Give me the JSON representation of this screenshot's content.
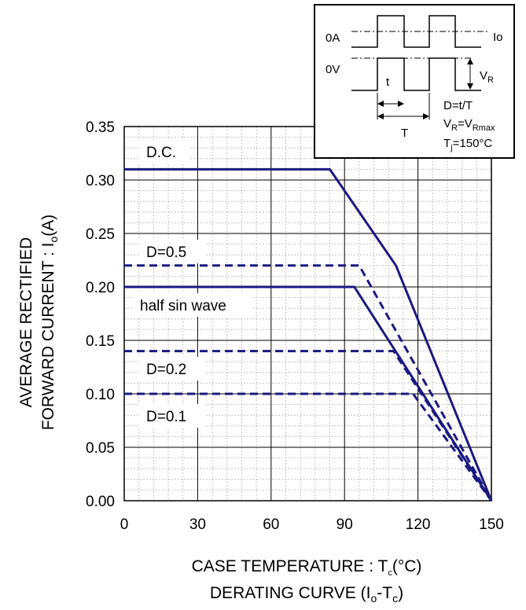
{
  "chart_data": {
    "type": "line",
    "xlabel": "CASE TEMPERATURE : T",
    "xlabel_sub": "c",
    "xlabel_unit": "(°C)",
    "caption": "DERATING CURVE (I",
    "caption_sub1": "o",
    "caption_mid": "-T",
    "caption_sub2": "c",
    "caption_end": ")",
    "ylabel_line1": "AVERAGE RECTIFIED",
    "ylabel_line2": "FORWARD CURRENT : I",
    "ylabel_line2_sub": "o",
    "ylabel_line2_end": "(A)",
    "xlim": [
      0,
      150
    ],
    "ylim": [
      0,
      0.35
    ],
    "x_ticks": [
      "0",
      "30",
      "60",
      "90",
      "120",
      "150"
    ],
    "y_ticks": [
      "0.00",
      "0.05",
      "0.10",
      "0.15",
      "0.20",
      "0.25",
      "0.30",
      "0.35"
    ],
    "grid": true,
    "series": [
      {
        "name": "D.C.",
        "style": "solid",
        "x": [
          0,
          84,
          111,
          150
        ],
        "y": [
          0.31,
          0.31,
          0.22,
          0.0
        ]
      },
      {
        "name": "D=0.5",
        "style": "dashed",
        "x": [
          0,
          96,
          150
        ],
        "y": [
          0.22,
          0.22,
          0.0
        ]
      },
      {
        "name": "half sin wave",
        "style": "solid",
        "x": [
          0,
          94,
          150
        ],
        "y": [
          0.2,
          0.2,
          0.0
        ]
      },
      {
        "name": "D=0.2",
        "style": "dashed",
        "x": [
          0,
          110,
          150
        ],
        "y": [
          0.14,
          0.14,
          0.0
        ]
      },
      {
        "name": "D=0.1",
        "style": "dashed",
        "x": [
          0,
          118,
          150
        ],
        "y": [
          0.1,
          0.1,
          0.0
        ]
      }
    ],
    "line_color": "#1a1a80"
  },
  "inset": {
    "label_0a": "0A",
    "label_0v": "0V",
    "label_io": "Io",
    "label_t": "t",
    "label_T": "T",
    "label_vr": "V",
    "label_vr_sub": "R",
    "eq_d": "D=t/T",
    "eq_vr": "V",
    "eq_vr_sub": "R",
    "eq_vr_mid": "=V",
    "eq_vr_sub2": "Rmax",
    "eq_tj": "T",
    "eq_tj_sub": "j",
    "eq_tj_end": "=150°C"
  }
}
